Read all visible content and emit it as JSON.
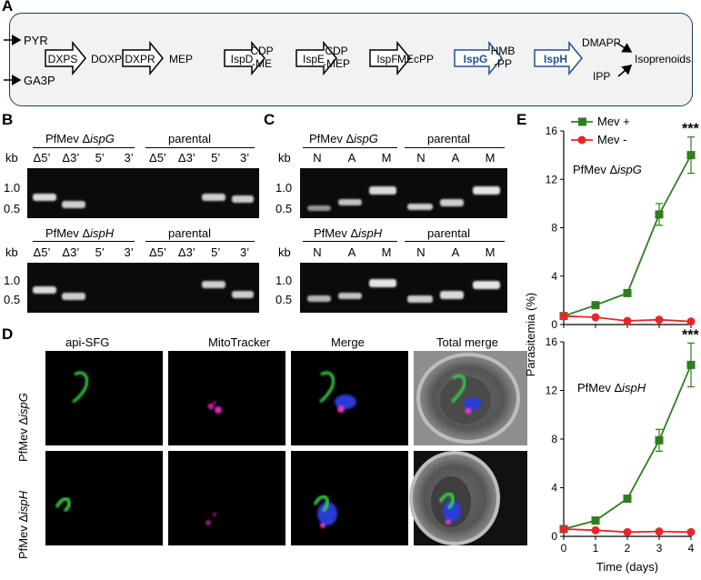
{
  "panels": {
    "a": "A",
    "b": "B",
    "c": "C",
    "d": "D",
    "e": "E"
  },
  "pathway": {
    "inputs": [
      "PYR",
      "GA3P"
    ],
    "steps": [
      {
        "enzyme": "DXPS",
        "product": "DOXP"
      },
      {
        "enzyme": "DXPR",
        "product": "MEP"
      },
      {
        "enzyme": "IspD",
        "product": "CDP\n-ME"
      },
      {
        "enzyme": "IspE",
        "product": "CDP\n-MEP"
      },
      {
        "enzyme": "IspF",
        "product": "MEcPP"
      },
      {
        "enzyme": "IspG",
        "product": "HMB\n-PP"
      },
      {
        "enzyme": "IspH",
        "product": ""
      }
    ],
    "outputs": [
      "DMAPP",
      "IPP"
    ],
    "final": "Isoprenoids",
    "highlight_color": "#1f4e9c"
  },
  "gel_b": {
    "kb": "kb",
    "ladder": [
      "1.0",
      "0.5"
    ],
    "top": {
      "strain_prefix": "PfMev Δ",
      "strain_gene": "ispG",
      "control": "parental"
    },
    "bottom": {
      "strain_prefix": "PfMev Δ",
      "strain_gene": "ispH",
      "control": "parental"
    },
    "lanes": [
      "Δ5’",
      "Δ3’",
      "5’",
      "3’",
      "Δ5’",
      "Δ3’",
      "5’",
      "3’"
    ]
  },
  "gel_c": {
    "kb": "kb",
    "ladder": [
      "1.0",
      "0.5"
    ],
    "top": {
      "strain_prefix": "PfMev Δ",
      "strain_gene": "ispG",
      "control": "parental"
    },
    "bottom": {
      "strain_prefix": "PfMev Δ",
      "strain_gene": "ispH",
      "control": "parental"
    },
    "lanes": [
      "N",
      "A",
      "M",
      "N",
      "A",
      "M"
    ]
  },
  "micro": {
    "columns": [
      "api-SFG",
      "MitoTracker",
      "Merge",
      "Total merge"
    ],
    "rows": [
      {
        "prefix": "PfMev Δ",
        "gene": "ispG"
      },
      {
        "prefix": "PfMev Δ",
        "gene": "ispH"
      }
    ]
  },
  "chart_data": [
    {
      "type": "line",
      "title": "PfMev ΔispG",
      "label_prefix": "PfMev Δ",
      "label_gene": "ispG",
      "x": [
        0,
        1,
        2,
        3,
        4
      ],
      "series": [
        {
          "name": "Mev +",
          "color": "#2e7d1f",
          "values": [
            0.7,
            1.6,
            2.6,
            9.1,
            14.0
          ],
          "err": [
            0.1,
            0.15,
            0.2,
            0.9,
            1.5
          ]
        },
        {
          "name": "Mev -",
          "color": "#e8262a",
          "values": [
            0.7,
            0.6,
            0.3,
            0.4,
            0.25
          ],
          "err": [
            0.05,
            0.05,
            0.05,
            0.05,
            0.05
          ]
        }
      ],
      "ylim": [
        0,
        16
      ],
      "yticks": [
        0,
        4,
        8,
        12,
        16
      ],
      "annotation": "***"
    },
    {
      "type": "line",
      "title": "PfMev ΔispH",
      "label_prefix": "PfMev Δ",
      "label_gene": "ispH",
      "x": [
        0,
        1,
        2,
        3,
        4
      ],
      "series": [
        {
          "name": "Mev +",
          "color": "#2e7d1f",
          "values": [
            0.6,
            1.3,
            3.1,
            7.9,
            14.1
          ],
          "err": [
            0.1,
            0.15,
            0.2,
            0.9,
            1.8
          ]
        },
        {
          "name": "Mev -",
          "color": "#e8262a",
          "values": [
            0.6,
            0.5,
            0.35,
            0.4,
            0.35
          ],
          "err": [
            0.05,
            0.05,
            0.05,
            0.05,
            0.05
          ]
        }
      ],
      "ylim": [
        0,
        16
      ],
      "yticks": [
        0,
        4,
        8,
        12,
        16
      ],
      "xticks": [
        0,
        1,
        2,
        3,
        4
      ],
      "annotation": "***"
    }
  ],
  "chart_axes": {
    "ylabel": "Parasitemia (%)",
    "xlabel": "Time (days)"
  },
  "legend": [
    "Mev +",
    "Mev -"
  ]
}
